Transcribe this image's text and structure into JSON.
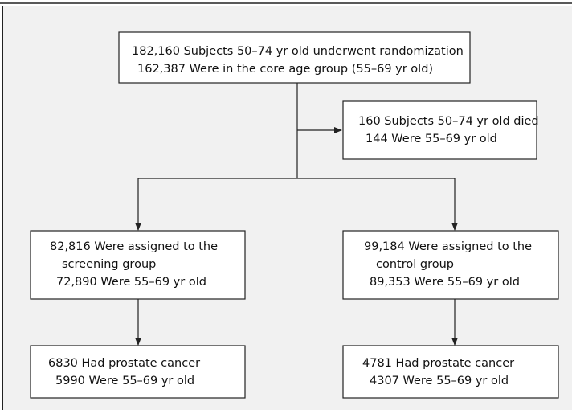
{
  "nodes": [
    {
      "lines": [
        "182,160 Subjects 50–74 yr old underwent randomization",
        "162,387 Were in the core age group (55–69 yr old)"
      ]
    },
    {
      "lines": [
        "160 Subjects 50–74 yr old died",
        "144 Were 55–69 yr old"
      ]
    },
    {
      "lines": [
        "82,816 Were assigned to the",
        "screening group",
        "72,890 Were 55–69 yr old"
      ]
    },
    {
      "lines": [
        "99,184 Were assigned to the",
        "control group",
        "89,353 Were 55–69 yr old"
      ]
    },
    {
      "lines": [
        "6830 Had prostate cancer",
        "5990 Were 55–69 yr old"
      ]
    },
    {
      "lines": [
        "4781 Had prostate cancer",
        "4307 Were 55–69 yr old"
      ]
    }
  ]
}
